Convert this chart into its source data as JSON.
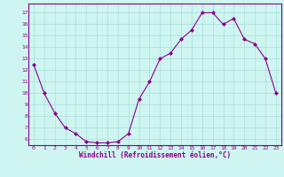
{
  "x": [
    0,
    1,
    2,
    3,
    4,
    5,
    6,
    7,
    8,
    9,
    10,
    11,
    12,
    13,
    14,
    15,
    16,
    17,
    18,
    19,
    20,
    21,
    22,
    23
  ],
  "y": [
    12.5,
    10.0,
    8.3,
    7.0,
    6.5,
    5.8,
    5.7,
    5.7,
    5.8,
    6.5,
    9.5,
    11.0,
    13.0,
    13.5,
    14.7,
    15.5,
    17.0,
    17.0,
    16.0,
    16.5,
    14.7,
    14.3,
    13.0,
    10.0
  ],
  "line_color": "#8b008b",
  "marker": "D",
  "marker_size": 2.0,
  "bg_color": "#cef5f0",
  "grid_color": "#aadddd",
  "xlabel": "Windchill (Refroidissement éolien,°C)",
  "xlim": [
    -0.5,
    23.5
  ],
  "ylim": [
    5.5,
    17.8
  ],
  "yticks": [
    6,
    7,
    8,
    9,
    10,
    11,
    12,
    13,
    14,
    15,
    16,
    17
  ],
  "xticks": [
    0,
    1,
    2,
    3,
    4,
    5,
    6,
    7,
    8,
    9,
    10,
    11,
    12,
    13,
    14,
    15,
    16,
    17,
    18,
    19,
    20,
    21,
    22,
    23
  ],
  "tick_color": "#8b008b",
  "label_color": "#8b008b",
  "spine_color": "#8b008b"
}
